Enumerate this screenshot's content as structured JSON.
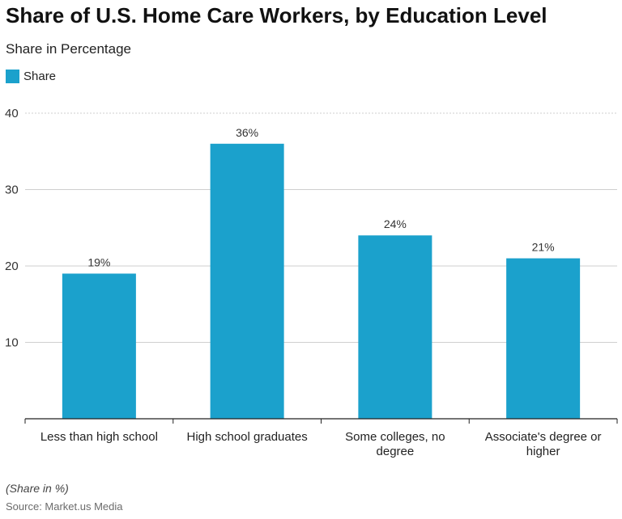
{
  "chart_data": {
    "type": "bar",
    "title": "Share of U.S. Home Care Workers, by Education Level",
    "subtitle": "Share in Percentage",
    "categories": [
      "Less than high school",
      "High school graduates",
      "Some colleges, no degree",
      "Associate's degree or higher"
    ],
    "series": [
      {
        "name": "Share",
        "values": [
          19,
          36,
          24,
          21
        ],
        "color": "#1ba1cc"
      }
    ],
    "data_labels": [
      "19%",
      "36%",
      "24%",
      "21%"
    ],
    "ylim": [
      0,
      40
    ],
    "yticks": [
      10,
      20,
      30,
      40
    ],
    "grid": true,
    "legend": "top-left"
  },
  "footnote": "(Share in %)",
  "source": "Source: Market.us Media"
}
